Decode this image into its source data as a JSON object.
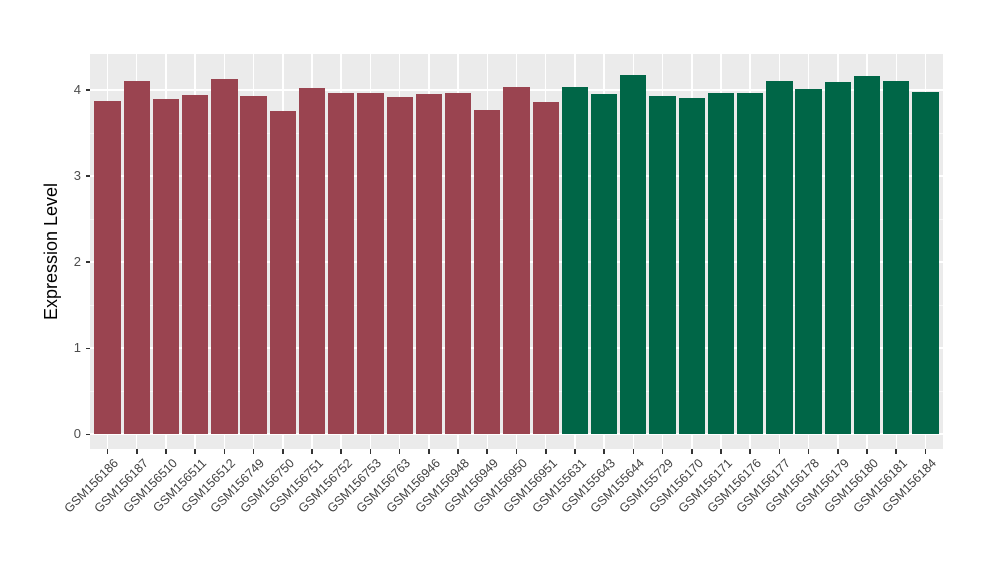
{
  "chart_data": {
    "type": "bar",
    "title": "",
    "xlabel": "",
    "ylabel": "Expression Level",
    "yticks": [
      0,
      1,
      2,
      3,
      4
    ],
    "yminorticks": [
      0.5,
      1.5,
      2.5,
      3.5
    ],
    "ylim": [
      -0.17,
      4.42
    ],
    "grid": true,
    "legend_position": "none",
    "panel_background": "#EBEBEB",
    "grid_major_color": "#FFFFFF",
    "grid_minor_color": "#F7F7F7",
    "tick_color": "#333333",
    "axis_text_color": "#4D4D4D",
    "groups": [
      {
        "name": "group1",
        "color": "#9A4450"
      },
      {
        "name": "group2",
        "color": "#006647"
      }
    ],
    "categories": [
      "GSM156186",
      "GSM156187",
      "GSM156510",
      "GSM156511",
      "GSM156512",
      "GSM156749",
      "GSM156750",
      "GSM156751",
      "GSM156752",
      "GSM156753",
      "GSM156763",
      "GSM156946",
      "GSM156948",
      "GSM156949",
      "GSM156950",
      "GSM156951",
      "GSM155631",
      "GSM155643",
      "GSM155644",
      "GSM155729",
      "GSM156170",
      "GSM156171",
      "GSM156176",
      "GSM156177",
      "GSM156178",
      "GSM156179",
      "GSM156180",
      "GSM156181",
      "GSM156184"
    ],
    "values": [
      3.87,
      4.1,
      3.9,
      3.94,
      4.13,
      3.93,
      3.76,
      4.02,
      3.97,
      3.97,
      3.92,
      3.95,
      3.97,
      3.77,
      4.03,
      3.86,
      4.03,
      3.95,
      4.18,
      3.93,
      3.91,
      3.96,
      3.97,
      4.11,
      4.01,
      4.09,
      4.16,
      4.1,
      3.98
    ],
    "bar_groups": [
      "group1",
      "group1",
      "group1",
      "group1",
      "group1",
      "group1",
      "group1",
      "group1",
      "group1",
      "group1",
      "group1",
      "group1",
      "group1",
      "group1",
      "group1",
      "group1",
      "group2",
      "group2",
      "group2",
      "group2",
      "group2",
      "group2",
      "group2",
      "group2",
      "group2",
      "group2",
      "group2",
      "group2",
      "group2"
    ]
  }
}
